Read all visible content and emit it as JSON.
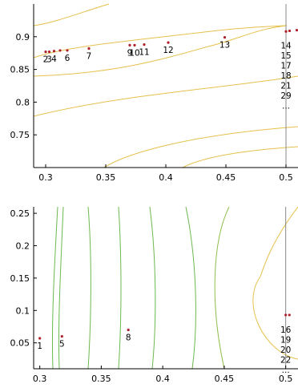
{
  "chart_data": [
    {
      "type": "scatter",
      "title": "",
      "xlabel": "",
      "ylabel": "",
      "xlim": [
        0.29,
        0.51
      ],
      "ylim": [
        0.7,
        0.95
      ],
      "xticks": [
        0.3,
        0.35,
        0.4,
        0.45,
        0.5
      ],
      "xtick_labels": [
        "0.3",
        "0.35",
        "0.4",
        "0.45",
        "0.5"
      ],
      "yticks": [
        0.75,
        0.8,
        0.85,
        0.9
      ],
      "ytick_labels": [
        "0.75",
        "0.8",
        "0.85",
        "0.9"
      ],
      "reference_line_x": 0.5,
      "contour_color": "#e5c04b",
      "point_color": "#b0202a",
      "points": [
        {
          "x": 0.3,
          "y": 0.877,
          "label": "2"
        },
        {
          "x": 0.303,
          "y": 0.877,
          "label": "3"
        },
        {
          "x": 0.307,
          "y": 0.878,
          "label": "4"
        },
        {
          "x": 0.312,
          "y": 0.879,
          "label": ""
        },
        {
          "x": 0.318,
          "y": 0.879,
          "label": "6"
        },
        {
          "x": 0.336,
          "y": 0.882,
          "label": "7"
        },
        {
          "x": 0.37,
          "y": 0.887,
          "label": "9"
        },
        {
          "x": 0.374,
          "y": 0.887,
          "label": "10"
        },
        {
          "x": 0.382,
          "y": 0.888,
          "label": "11"
        },
        {
          "x": 0.402,
          "y": 0.891,
          "label": "12"
        },
        {
          "x": 0.449,
          "y": 0.899,
          "label": "13"
        },
        {
          "x": 0.5,
          "y": 0.908,
          "label": ""
        },
        {
          "x": 0.503,
          "y": 0.909,
          "label": ""
        },
        {
          "x": 0.509,
          "y": 0.91,
          "label": ""
        }
      ],
      "stack_labels": [
        "14",
        "15",
        "17",
        "18",
        "21",
        "29",
        "..."
      ]
    },
    {
      "type": "scatter",
      "title": "",
      "xlabel": "",
      "ylabel": "",
      "xlim": [
        0.295,
        0.51
      ],
      "ylim": [
        0.01,
        0.26
      ],
      "xticks": [
        0.3,
        0.35,
        0.4,
        0.45,
        0.5
      ],
      "xtick_labels": [
        "0.3",
        "0.35",
        "0.4",
        "0.45",
        "0.5"
      ],
      "yticks": [
        0.05,
        0.1,
        0.15,
        0.2,
        0.25
      ],
      "ytick_labels": [
        "0.05",
        "0.1",
        "0.15",
        "0.2",
        "0.25"
      ],
      "reference_line_x": 0.5,
      "contour_colors": [
        "#6db84f",
        "#e5c04b"
      ],
      "point_color": "#b0202a",
      "points": [
        {
          "x": 0.3,
          "y": 0.057,
          "label": "1"
        },
        {
          "x": 0.318,
          "y": 0.06,
          "label": "5"
        },
        {
          "x": 0.372,
          "y": 0.07,
          "label": "8"
        },
        {
          "x": 0.5,
          "y": 0.093,
          "label": ""
        },
        {
          "x": 0.503,
          "y": 0.093,
          "label": ""
        }
      ],
      "stack_labels": [
        "16",
        "19",
        "20",
        "22",
        "..."
      ]
    }
  ]
}
